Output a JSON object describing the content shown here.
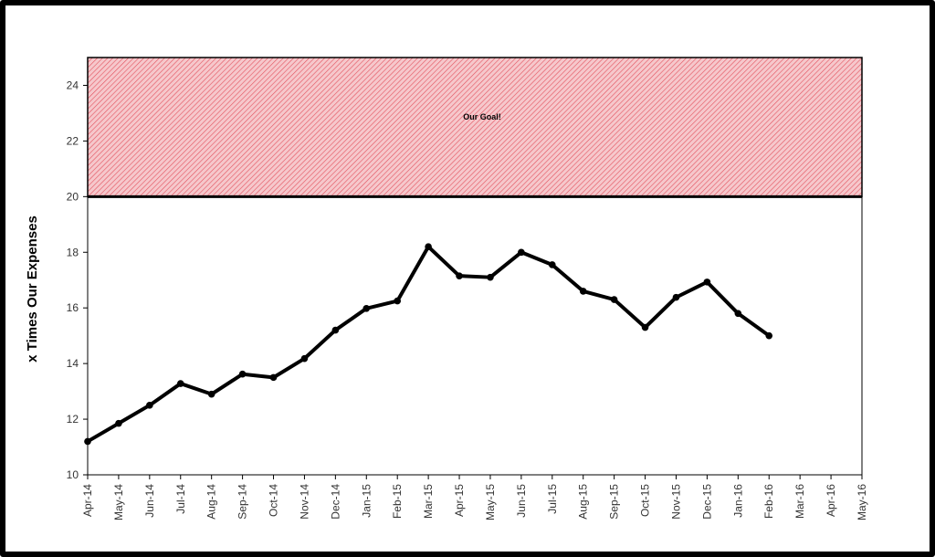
{
  "chart_data": {
    "type": "line",
    "title": "",
    "xlabel": "",
    "ylabel": "x Times Our Expenses",
    "ylim": [
      10,
      25
    ],
    "yticks": [
      10,
      12,
      14,
      16,
      18,
      20,
      22,
      24
    ],
    "categories": [
      "Apr-14",
      "May-14",
      "Jun-14",
      "Jul-14",
      "Aug-14",
      "Sep-14",
      "Oct-14",
      "Nov-14",
      "Dec-14",
      "Jan-15",
      "Feb-15",
      "Mar-15",
      "Apr-15",
      "May-15",
      "Jun-15",
      "Jul-15",
      "Aug-15",
      "Sep-15",
      "Oct-15",
      "Nov-15",
      "Dec-15",
      "Jan-16",
      "Feb-16",
      "Mar-16",
      "Apr-16",
      "May-16"
    ],
    "series": [
      {
        "values": [
          11.2,
          11.85,
          12.5,
          13.28,
          12.9,
          13.62,
          13.5,
          14.18,
          15.2,
          15.98,
          16.25,
          18.2,
          17.15,
          17.1,
          18.0,
          17.55,
          16.6,
          16.3,
          15.3,
          16.38,
          16.93,
          15.8,
          15.0,
          null,
          null,
          null
        ],
        "color": "#000000"
      }
    ],
    "goal_band": {
      "label": "Our Goal!",
      "from": 20,
      "to": 25,
      "fill_color": "#f6c8cc",
      "hatch_color": "#e2525e"
    },
    "grid": false,
    "legend": "none"
  }
}
